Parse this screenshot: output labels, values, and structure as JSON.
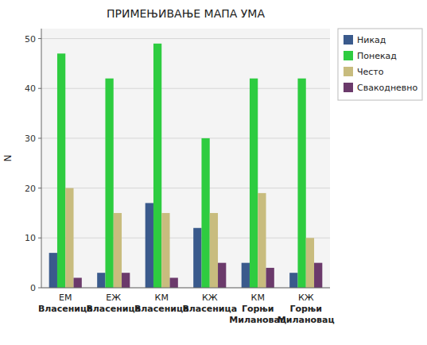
{
  "chart_data": {
    "type": "bar",
    "title": "ПРИМЕЊИВАЊЕ МАПА УМА",
    "y_label": "N",
    "categories": [
      "ЕМ\nВласеница",
      "ЕЖ\nВласеница",
      "КМ\nВласеница",
      "КЖ\nВласеница",
      "КМ\nГорњи Милановац",
      "КЖ\nГорњи Милановац"
    ],
    "series": [
      {
        "name": "Никад",
        "color": "#3a5a8c",
        "values": [
          7,
          3,
          17,
          12,
          5,
          3
        ]
      },
      {
        "name": "Понекад",
        "color": "#2ecc40",
        "values": [
          47,
          42,
          49,
          30,
          42,
          42
        ]
      },
      {
        "name": "Често",
        "color": "#c8bc7e",
        "values": [
          20,
          15,
          15,
          15,
          19,
          10
        ]
      },
      {
        "name": "Свакодневно",
        "color": "#6b3a6b",
        "values": [
          2,
          3,
          2,
          5,
          4,
          5
        ]
      }
    ],
    "ylim": [
      0,
      52
    ],
    "yticks": [
      0,
      10,
      20,
      30,
      40,
      50
    ],
    "grid": true,
    "legend": "upper right"
  }
}
